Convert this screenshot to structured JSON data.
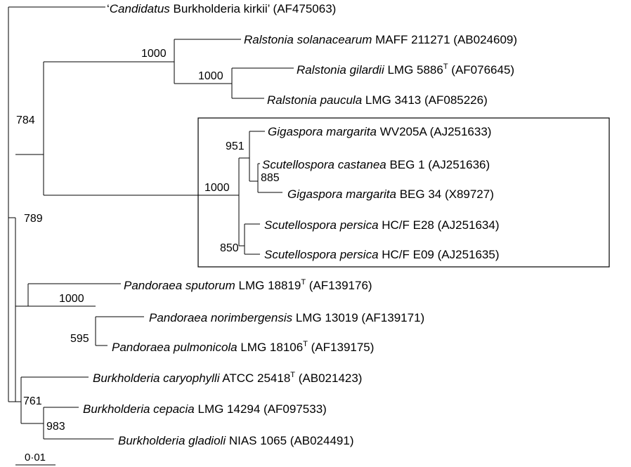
{
  "tree": {
    "leaves": [
      {
        "id": "kirkii",
        "prefix": "‘",
        "italic": "Candidatus",
        "plain": " Burkholderia kirkii’ (AF475063)"
      },
      {
        "id": "solanacearum",
        "prefix": "",
        "italic": "Ralstonia solanacearum",
        "plain": " MAFF 211271 (AB024609)"
      },
      {
        "id": "gilardii",
        "prefix": "",
        "italic": "Ralstonia gilardii",
        "plain": " LMG 5886",
        "sup": "T",
        "tail": " (AF076645)"
      },
      {
        "id": "paucula",
        "prefix": "",
        "italic": "Ralstonia paucula",
        "plain": " LMG 3413 (AF085226)"
      },
      {
        "id": "gig-wv205a",
        "prefix": "",
        "italic": "Gigaspora margarita",
        "plain": " WV205A (AJ251633)"
      },
      {
        "id": "scu-castanea",
        "prefix": "",
        "italic": "Scutellospora castanea",
        "plain": " BEG 1 (AJ251636)"
      },
      {
        "id": "gig-beg34",
        "prefix": "",
        "italic": "Gigaspora margarita",
        "plain": " BEG 34 (X89727)"
      },
      {
        "id": "scu-e28",
        "prefix": "",
        "italic": "Scutellospora persica",
        "plain": " HC/F E28 (AJ251634)"
      },
      {
        "id": "scu-e09",
        "prefix": "",
        "italic": "Scutellospora persica",
        "plain": " HC/F E09 (AJ251635)"
      },
      {
        "id": "sputorum",
        "prefix": "",
        "italic": "Pandoraea sputorum",
        "plain": " LMG 18819",
        "sup": "T",
        "tail": " (AF139176)"
      },
      {
        "id": "norimbergensis",
        "prefix": "",
        "italic": "Pandoraea norimbergensis",
        "plain": " LMG 13019 (AF139171)"
      },
      {
        "id": "pulmonicola",
        "prefix": "",
        "italic": "Pandoraea pulmonicola",
        "plain": " LMG 18106",
        "sup": "T",
        "tail": " (AF139175)"
      },
      {
        "id": "caryophylli",
        "prefix": "",
        "italic": "Burkholderia caryophylli",
        "plain": " ATCC 25418",
        "sup": "T",
        "tail": " (AB021423)"
      },
      {
        "id": "cepacia",
        "prefix": "",
        "italic": "Burkholderia cepacia",
        "plain": " LMG 14294 (AF097533)"
      },
      {
        "id": "gladioli",
        "prefix": "",
        "italic": "Burkholderia gladioli",
        "plain": " NIAS 1065 (AB024491)"
      }
    ],
    "bootstrap_values": [
      {
        "id": "ralstonia-clade",
        "value": "1000"
      },
      {
        "id": "gilardii-paucula",
        "value": "1000"
      },
      {
        "id": "ralstonia-fungal",
        "value": "784"
      },
      {
        "id": "fungal-clade",
        "value": "1000"
      },
      {
        "id": "gigaspora-group",
        "value": "951"
      },
      {
        "id": "castanea-beg34",
        "value": "885"
      },
      {
        "id": "persica-pair",
        "value": "850"
      },
      {
        "id": "main-split",
        "value": "789"
      },
      {
        "id": "pandoraea-clade",
        "value": "1000"
      },
      {
        "id": "norimbergensis-pulmonicola",
        "value": "595"
      },
      {
        "id": "burkholderia-clade",
        "value": "761"
      },
      {
        "id": "cepacia-gladioli",
        "value": "983"
      }
    ],
    "scale_bar": {
      "label": "0·01"
    }
  }
}
